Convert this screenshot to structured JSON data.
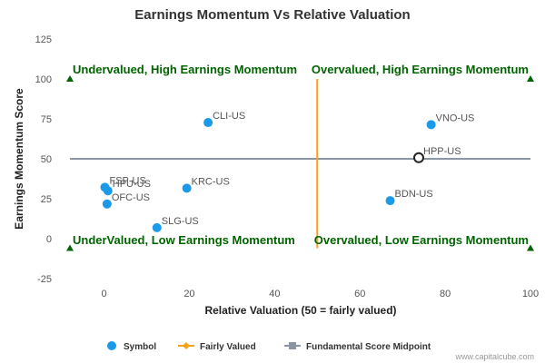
{
  "chart_data": {
    "type": "scatter",
    "title": "Earnings Momentum Vs Relative Valuation",
    "xlabel": "Relative Valuation (50 = fairly valued)",
    "ylabel": "Earnings Momentum Score",
    "xlim": [
      -8,
      100
    ],
    "ylim": [
      -25,
      125
    ],
    "x_ticks": [
      "0",
      "20",
      "40",
      "60",
      "80",
      "100"
    ],
    "x_tick_values": [
      0,
      20,
      40,
      60,
      80,
      100
    ],
    "y_ticks": [
      "125",
      "100",
      "75",
      "50",
      "25",
      "0",
      "-25"
    ],
    "y_tick_values": [
      125,
      100,
      75,
      50,
      25,
      0,
      -25
    ],
    "grid": false,
    "series": [
      {
        "name": "Symbol",
        "color": "#1a9ae8",
        "points": [
          {
            "label": "CLI-US",
            "x": 24.4,
            "y": 72.7
          },
          {
            "label": "VNO-US",
            "x": 76.7,
            "y": 71.4
          },
          {
            "label": "HPP-US",
            "x": 73.8,
            "y": 50.7,
            "highlight": true
          },
          {
            "label": "FSP-US",
            "x": 0.2,
            "y": 32.2
          },
          {
            "label": "HPU-US",
            "x": 0.9,
            "y": 30.0
          },
          {
            "label": "KRC-US",
            "x": 19.4,
            "y": 31.6
          },
          {
            "label": "OFC-US",
            "x": 0.7,
            "y": 21.7
          },
          {
            "label": "BDN-US",
            "x": 67.1,
            "y": 23.8
          },
          {
            "label": "SLG-US",
            "x": 12.4,
            "y": 6.9
          }
        ]
      },
      {
        "name": "Fairly Valued",
        "color": "#f5a11c",
        "x": 50,
        "y_range": [
          -6,
          100
        ]
      },
      {
        "name": "Fundamental Score Midpoint",
        "color": "#8a96a3",
        "y": 50,
        "x_range": [
          -8,
          100
        ]
      }
    ],
    "quadrant_labels": [
      "Undervalued, High Earnings Momentum",
      "Overvalued, High Earnings Momentum",
      "UnderValued, Low Earnings Momentum",
      "Overvalued, Low Earnings Momentum"
    ],
    "quadrant_color": "#006400",
    "legend_position": "bottom-center"
  },
  "legend": {
    "symbol": "Symbol",
    "fairly_valued": "Fairly Valued",
    "midpoint": "Fundamental Score Midpoint"
  },
  "credit": "www.capitalcube.com"
}
